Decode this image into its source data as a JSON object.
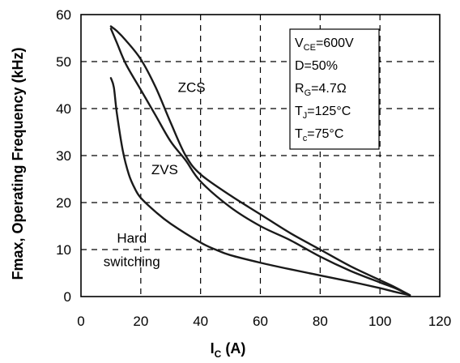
{
  "chart_data": {
    "type": "line",
    "xlabel": "I",
    "xlabel_sub": "C",
    "xlabel_unit": " (A)",
    "ylabel": "Fmax, Operating Frequency (kHz)",
    "xlim": [
      0,
      120
    ],
    "ylim": [
      0,
      60
    ],
    "xticks": [
      0,
      20,
      40,
      60,
      80,
      100,
      120
    ],
    "yticks": [
      0,
      10,
      20,
      30,
      40,
      50,
      60
    ],
    "grid": true,
    "series": [
      {
        "name": "ZCS",
        "x": [
          10,
          12,
          15,
          20,
          25,
          30,
          35,
          40,
          50,
          60,
          70,
          80,
          90,
          100,
          105,
          110
        ],
        "y": [
          57.5,
          56.5,
          54.5,
          50.5,
          44.5,
          37,
          30,
          26,
          21.5,
          17.5,
          13.5,
          10,
          6.5,
          3.5,
          2,
          0.3
        ]
      },
      {
        "name": "ZVS",
        "x": [
          10,
          12,
          15,
          20,
          25,
          30,
          35,
          40,
          50,
          60,
          70,
          80,
          90,
          100,
          105,
          110
        ],
        "y": [
          57,
          54,
          49.5,
          44,
          38.5,
          33,
          29,
          24.5,
          19,
          15,
          12,
          8.5,
          5.5,
          3,
          1.8,
          0.3
        ]
      },
      {
        "name": "Hard switching",
        "x": [
          10,
          11,
          12,
          14,
          16,
          18,
          20,
          25,
          30,
          40,
          45,
          50,
          60,
          70,
          80,
          90,
          100,
          105,
          110
        ],
        "y": [
          46.5,
          44.5,
          39,
          31,
          26,
          23,
          21,
          18,
          15.5,
          11.5,
          10,
          8.8,
          7.2,
          5.8,
          4.5,
          3.2,
          1.8,
          1,
          0.3
        ]
      }
    ],
    "annotations": [
      {
        "text": "ZCS",
        "x": 37,
        "y": 43.5
      },
      {
        "text": "ZVS",
        "x": 28,
        "y": 26
      },
      {
        "text": "Hard",
        "x": 17,
        "y": 11.5
      },
      {
        "text": "switching",
        "x": 17,
        "y": 6.5
      }
    ],
    "conditions_box": {
      "lines": [
        {
          "main": "V",
          "sub": "CE",
          "rest": "=600V"
        },
        {
          "main": "D=50%",
          "sub": "",
          "rest": ""
        },
        {
          "main": "R",
          "sub": "G",
          "rest": "=4.7Ω"
        },
        {
          "main": "T",
          "sub": "J",
          "rest": "=125°C"
        },
        {
          "main": "T",
          "sub": "c",
          "rest": "=75°C"
        }
      ]
    }
  }
}
